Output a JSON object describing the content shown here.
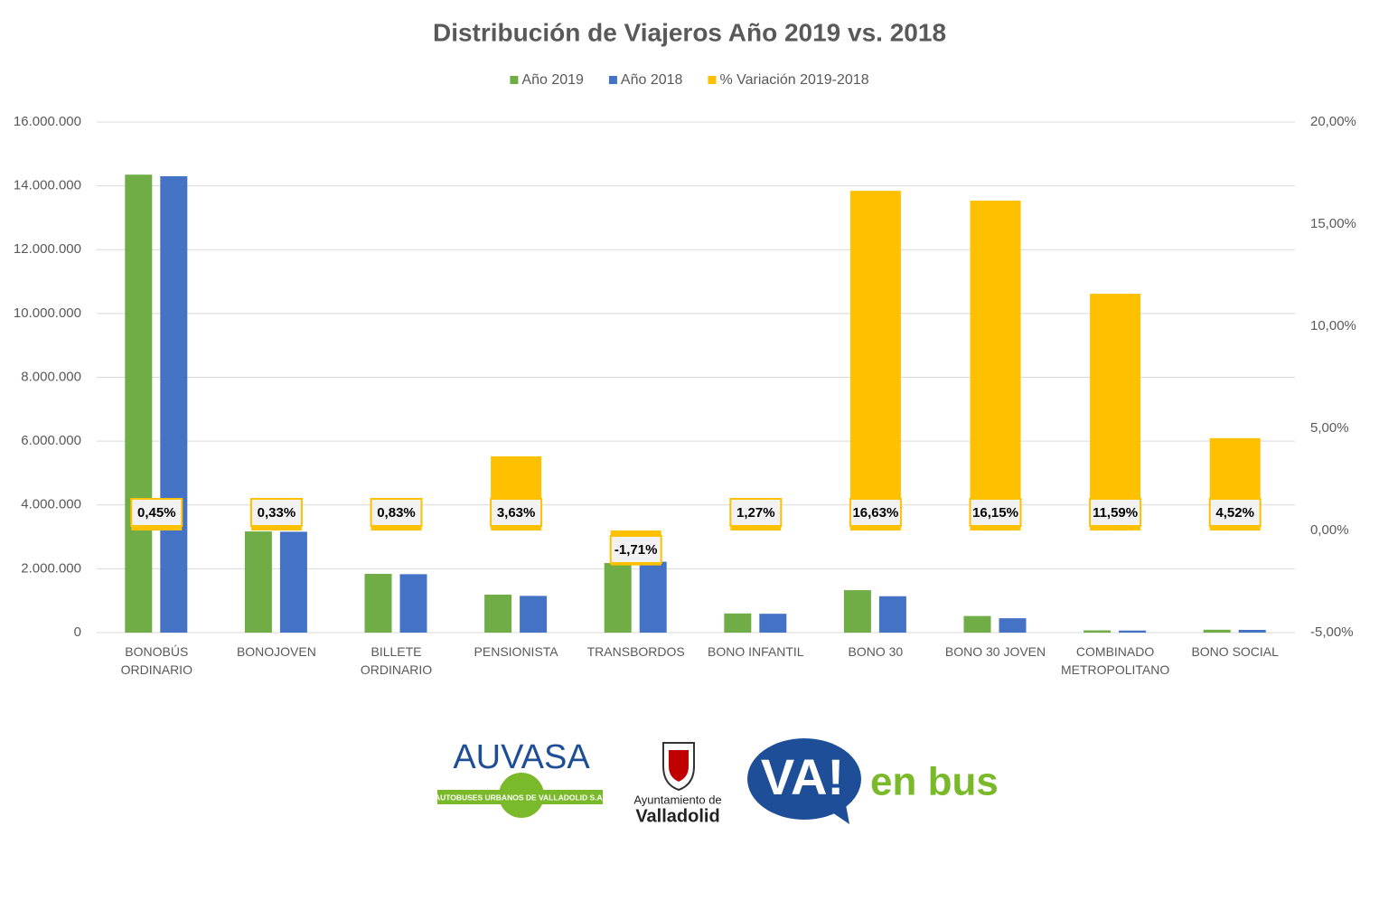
{
  "chart_data": {
    "type": "bar",
    "title": "Distribución de Viajeros Año 2019 vs. 2018",
    "categories": [
      "BONOBÚS ORDINARIO",
      "BONOJOVEN",
      "BILLETE ORDINARIO",
      "PENSIONISTA",
      "TRANSBORDOS",
      "BONO INFANTIL",
      "BONO 30",
      "BONO 30 JOVEN",
      "COMBINADO METROPOLITANO",
      "BONO SOCIAL"
    ],
    "series": [
      {
        "name": "Año 2019",
        "color": "#70ad47",
        "values": [
          14350000,
          3170000,
          1840000,
          1190000,
          2180000,
          600000,
          1330000,
          520000,
          70000,
          90000
        ]
      },
      {
        "name": "Año 2018",
        "color": "#4472c4",
        "values": [
          14300000,
          3160000,
          1830000,
          1150000,
          2220000,
          590000,
          1140000,
          450000,
          65000,
          85000
        ]
      },
      {
        "name": "% Variación 2019-2018",
        "color": "#ffc000",
        "axis": "y2",
        "values": [
          0.45,
          0.33,
          0.83,
          3.63,
          -1.71,
          1.27,
          16.63,
          16.15,
          11.59,
          4.52
        ],
        "value_labels": [
          "0,45%",
          "0,33%",
          "0,83%",
          "3,63%",
          "-1,71%",
          "1,27%",
          "16,63%",
          "16,15%",
          "11,59%",
          "4,52%"
        ]
      }
    ],
    "ylim": [
      0,
      16000000
    ],
    "yticks": [
      0,
      {
        "value": 2000000,
        "label": "2.000.000"
      },
      {
        "value": 4000000,
        "label": "4.000.000"
      },
      {
        "value": 6000000,
        "label": "6.000.000"
      },
      {
        "value": 8000000,
        "label": "8.000.000"
      },
      {
        "value": 10000000,
        "label": "10.000.000"
      },
      {
        "value": 12000000,
        "label": "12.000.000"
      },
      {
        "value": 14000000,
        "label": "14.000.000"
      },
      {
        "value": 16000000,
        "label": "16.000.000"
      }
    ],
    "y2lim": [
      -5,
      20
    ],
    "y2ticks": [
      {
        "value": -5,
        "label": "-5,00%"
      },
      {
        "value": 0,
        "label": "0,00%"
      },
      {
        "value": 5,
        "label": "5,00%"
      },
      {
        "value": 10,
        "label": "10,00%"
      },
      {
        "value": 15,
        "label": "15,00%"
      },
      {
        "value": 20,
        "label": "20,00%"
      }
    ],
    "grid": true,
    "legend": "top"
  },
  "logos": {
    "auvasa": "AUVASA",
    "auvasa_sub": "AUTOBUSES URBANOS DE VALLADOLID S.A.",
    "ayto_1": "Ayuntamiento de",
    "ayto_2": "Valladolid",
    "va": "VA!",
    "va_sub": "en bus"
  }
}
